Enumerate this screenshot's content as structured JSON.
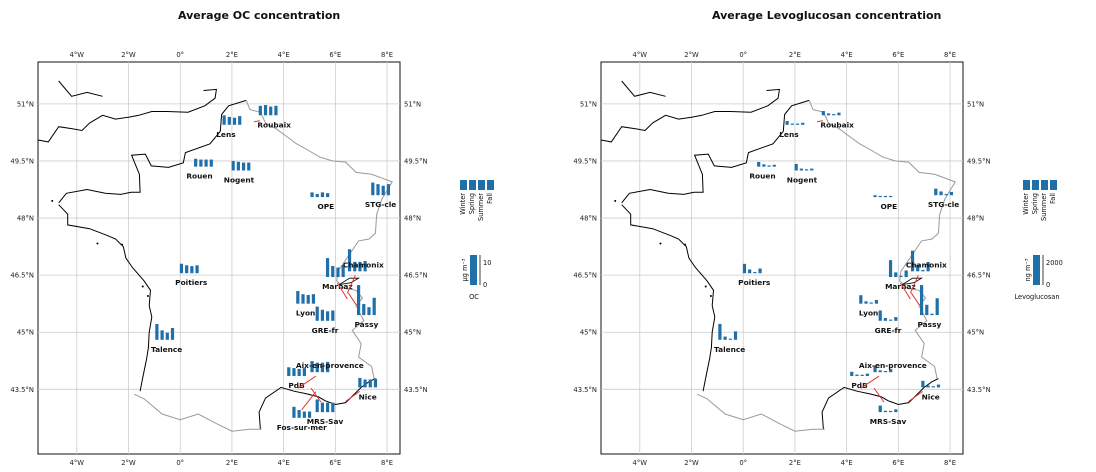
{
  "titles": {
    "left": "Average OC concentration",
    "right": "Average Levoglucosan concentration"
  },
  "axes": {
    "lon_ticks": [
      "4°W",
      "2°W",
      "0°",
      "2°E",
      "4°E",
      "6°E",
      "8°E"
    ],
    "lat_ticks": [
      "51°N",
      "49.5°N",
      "48°N",
      "46.5°N",
      "45°N",
      "43.5°N"
    ]
  },
  "season_legend": {
    "labels": [
      "Winter",
      "Spring",
      "Summer",
      "Fall"
    ]
  },
  "scale_legends": {
    "left": {
      "unit": "µg m⁻³",
      "label": "OC",
      "ticks": [
        "0",
        "10"
      ]
    },
    "right": {
      "unit": "ng m⁻³",
      "label": "Levoglucosan",
      "ticks": [
        "0",
        "2000"
      ]
    }
  },
  "colors": {
    "bars": "#1f6fa8",
    "coast": "#000000",
    "borders": "#999999",
    "grid": "#cccccc",
    "arrows": "#e8332c"
  },
  "sites_left": [
    {
      "name": "Lens",
      "values": [
        6,
        5,
        4.5,
        5.5
      ]
    },
    {
      "name": "Roubaix",
      "values": [
        6,
        6.5,
        5.5,
        6
      ]
    },
    {
      "name": "Rouen",
      "values": [
        5,
        4.5,
        4.5,
        4.5
      ]
    },
    {
      "name": "Nogent",
      "values": [
        6,
        5.5,
        5,
        5
      ]
    },
    {
      "name": "OPE",
      "values": [
        3,
        2,
        3,
        2.5
      ]
    },
    {
      "name": "STG-cle",
      "values": [
        8,
        7,
        6,
        7
      ]
    },
    {
      "name": "Poitiers",
      "values": [
        6,
        5,
        4.5,
        5
      ]
    },
    {
      "name": "Marnaz",
      "values": [
        12,
        7,
        6,
        7.5
      ]
    },
    {
      "name": "Chamonix",
      "values": [
        14,
        6,
        6,
        6.5
      ]
    },
    {
      "name": "Lyon",
      "values": [
        8,
        6,
        5.5,
        6
      ]
    },
    {
      "name": "Passy",
      "values": [
        19,
        7,
        5,
        11
      ]
    },
    {
      "name": "GRE-fr",
      "values": [
        9,
        7,
        6,
        6.5
      ]
    },
    {
      "name": "Talence",
      "values": [
        10,
        6,
        4.5,
        7.5
      ]
    },
    {
      "name": "PdB",
      "values": [
        5.5,
        5,
        4.5,
        5
      ]
    },
    {
      "name": "Aix-en-provence",
      "values": [
        7,
        6,
        6,
        6.5
      ]
    },
    {
      "name": "Nice",
      "values": [
        6,
        5,
        5,
        5.5
      ]
    },
    {
      "name": "Fos-sur-mer",
      "values": [
        7,
        5,
        4,
        4
      ]
    },
    {
      "name": "MRS-Sav",
      "values": [
        8,
        6,
        6,
        6
      ]
    }
  ],
  "sites_right": [
    {
      "name": "Lens",
      "values": [
        400,
        120,
        60,
        220
      ]
    },
    {
      "name": "Roubaix",
      "values": [
        450,
        200,
        80,
        280
      ]
    },
    {
      "name": "Rouen",
      "values": [
        500,
        250,
        80,
        200
      ]
    },
    {
      "name": "Nogent",
      "values": [
        700,
        200,
        60,
        200
      ]
    },
    {
      "name": "OPE",
      "values": [
        200,
        40,
        20,
        100
      ]
    },
    {
      "name": "STG-cle",
      "values": [
        700,
        400,
        80,
        350
      ]
    },
    {
      "name": "Poitiers",
      "values": [
        1000,
        400,
        60,
        500
      ]
    },
    {
      "name": "Marnaz",
      "values": [
        1800,
        500,
        100,
        700
      ]
    },
    {
      "name": "Chamonix",
      "values": [
        2200,
        700,
        150,
        1000
      ]
    },
    {
      "name": "Lyon",
      "values": [
        900,
        250,
        50,
        400
      ]
    },
    {
      "name": "Passy",
      "values": [
        3200,
        1100,
        150,
        1800
      ]
    },
    {
      "name": "GRE-fr",
      "values": [
        1100,
        300,
        60,
        400
      ]
    },
    {
      "name": "Talence",
      "values": [
        1700,
        350,
        60,
        900
      ]
    },
    {
      "name": "PdB",
      "values": [
        450,
        150,
        40,
        250
      ]
    },
    {
      "name": "Aix-en-provence",
      "values": [
        700,
        200,
        60,
        350
      ]
    },
    {
      "name": "Nice",
      "values": [
        700,
        200,
        60,
        300
      ]
    },
    {
      "name": "MRS-Sav",
      "values": [
        700,
        150,
        40,
        300
      ]
    }
  ]
}
